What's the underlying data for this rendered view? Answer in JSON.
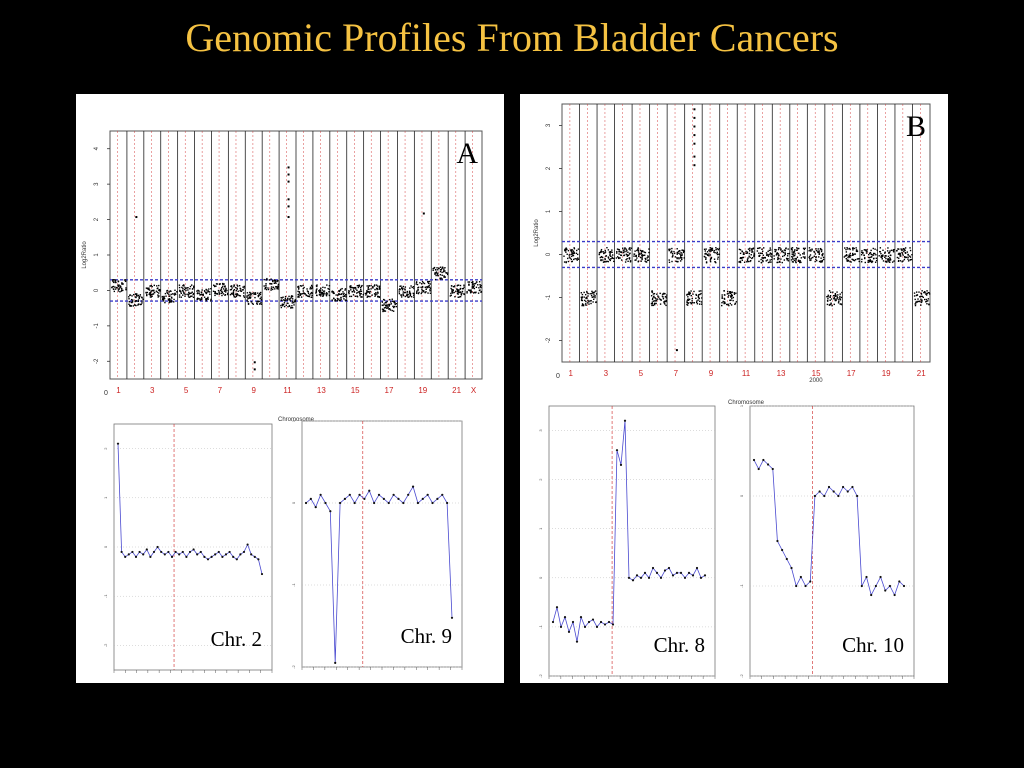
{
  "slide": {
    "title": "Genomic Profiles From Bladder Cancers"
  },
  "colors": {
    "background": "#000000",
    "title": "#f5c242",
    "panel": "#ffffff",
    "trace": "#4a4ad0",
    "chrom_label": "#cc2222",
    "threshold": "#3a3ac8",
    "chr_divider": "#cc2222"
  },
  "chart_data": [
    {
      "panel": "A",
      "type": "scatter",
      "panel_letter": "A",
      "xlabel": "Chromosome",
      "ylabel": "Log2Ratio",
      "x_start_label": "0",
      "chromosome_labels": [
        "1",
        "3",
        "5",
        "7",
        "9",
        "11",
        "13",
        "15",
        "17",
        "19",
        "21",
        "X"
      ],
      "thresholds": [
        0.3,
        -0.3
      ],
      "ylim": [
        -2.5,
        4.5
      ],
      "segments": [
        {
          "chrom": "1",
          "mean": 0.15
        },
        {
          "chrom": "2",
          "mean": -0.25
        },
        {
          "chrom": "3",
          "mean": 0.0
        },
        {
          "chrom": "4",
          "mean": -0.15
        },
        {
          "chrom": "5",
          "mean": 0.0
        },
        {
          "chrom": "6",
          "mean": -0.1
        },
        {
          "chrom": "7",
          "mean": 0.05
        },
        {
          "chrom": "8",
          "mean": 0.0
        },
        {
          "chrom": "9",
          "mean": -0.2
        },
        {
          "chrom": "10",
          "mean": 0.2
        },
        {
          "chrom": "11",
          "mean": -0.3
        },
        {
          "chrom": "12",
          "mean": 0.0
        },
        {
          "chrom": "13",
          "mean": 0.0
        },
        {
          "chrom": "14",
          "mean": -0.1
        },
        {
          "chrom": "15",
          "mean": 0.0
        },
        {
          "chrom": "16",
          "mean": 0.0
        },
        {
          "chrom": "17",
          "mean": -0.4
        },
        {
          "chrom": "18",
          "mean": 0.0
        },
        {
          "chrom": "19",
          "mean": 0.1
        },
        {
          "chrom": "20",
          "mean": 0.5
        },
        {
          "chrom": "21",
          "mean": 0.0
        },
        {
          "chrom": "X",
          "mean": 0.1
        }
      ],
      "outliers": [
        {
          "chrom": "11",
          "values": [
            3.5,
            3.3,
            3.1,
            2.6,
            2.4,
            2.1
          ]
        },
        {
          "chrom": "2",
          "values": [
            2.1
          ]
        },
        {
          "chrom": "9",
          "values": [
            -2.0,
            -2.2
          ]
        },
        {
          "chrom": "19",
          "values": [
            2.2
          ]
        }
      ]
    },
    {
      "panel": "B",
      "type": "scatter",
      "panel_letter": "B",
      "xlabel": "Chromosome",
      "ylabel": "Log2Ratio",
      "x_start_label": "0",
      "x_mid_label": "2000",
      "chromosome_labels": [
        "1",
        "3",
        "5",
        "7",
        "9",
        "11",
        "13",
        "15",
        "17",
        "19",
        "21"
      ],
      "thresholds": [
        0.3,
        -0.3
      ],
      "ylim": [
        -2.5,
        3.5
      ],
      "segments": [
        {
          "chrom": "1",
          "mean": 0.0
        },
        {
          "chrom": "2",
          "mean": -1.0
        },
        {
          "chrom": "3",
          "mean": 0.0
        },
        {
          "chrom": "4",
          "mean": 0.0
        },
        {
          "chrom": "5",
          "mean": 0.0
        },
        {
          "chrom": "6",
          "mean": -1.0
        },
        {
          "chrom": "7",
          "mean": 0.0
        },
        {
          "chrom": "8",
          "mean": -1.0
        },
        {
          "chrom": "9",
          "mean": 0.0
        },
        {
          "chrom": "10",
          "mean": -1.0
        },
        {
          "chrom": "11",
          "mean": 0.0
        },
        {
          "chrom": "12",
          "mean": 0.0
        },
        {
          "chrom": "13",
          "mean": 0.0
        },
        {
          "chrom": "14",
          "mean": 0.0
        },
        {
          "chrom": "15",
          "mean": 0.0
        },
        {
          "chrom": "16",
          "mean": -1.0
        },
        {
          "chrom": "17",
          "mean": 0.0
        },
        {
          "chrom": "18",
          "mean": 0.0
        },
        {
          "chrom": "19",
          "mean": 0.0
        },
        {
          "chrom": "20",
          "mean": 0.0
        },
        {
          "chrom": "21",
          "mean": -1.0
        }
      ],
      "outliers": [
        {
          "chrom": "8",
          "values": [
            3.4,
            3.2,
            3.0,
            2.8,
            2.6,
            2.3,
            2.1
          ]
        },
        {
          "chrom": "7",
          "values": [
            -2.2
          ]
        }
      ]
    },
    {
      "panel": "A-detail-1",
      "type": "line",
      "label": "Chr. 2",
      "ylim": [
        -2.5,
        2.5
      ],
      "values": [
        2.1,
        -0.1,
        -0.2,
        -0.15,
        -0.1,
        -0.2,
        -0.1,
        -0.15,
        -0.05,
        -0.2,
        -0.1,
        0.0,
        -0.1,
        -0.15,
        -0.1,
        -0.2,
        -0.1,
        -0.15,
        -0.1,
        -0.2,
        -0.1,
        -0.05,
        -0.15,
        -0.1,
        -0.2,
        -0.25,
        -0.2,
        -0.15,
        -0.1,
        -0.2,
        -0.15,
        -0.1,
        -0.2,
        -0.25,
        -0.15,
        -0.1,
        0.05,
        -0.15,
        -0.2,
        -0.25,
        -0.55
      ]
    },
    {
      "panel": "A-detail-2",
      "type": "line",
      "label": "Chr. 9",
      "ylim": [
        -2.0,
        1.0
      ],
      "values": [
        0.0,
        0.05,
        -0.05,
        0.1,
        0.0,
        -0.1,
        -1.95,
        0.0,
        0.05,
        0.1,
        0.0,
        0.1,
        0.05,
        0.15,
        0.0,
        0.1,
        0.05,
        0.0,
        0.1,
        0.05,
        0.0,
        0.1,
        0.2,
        0.0,
        0.05,
        0.1,
        0.0,
        0.05,
        0.1,
        0.0,
        -1.4
      ]
    },
    {
      "panel": "B-detail-1",
      "type": "line",
      "label": "Chr. 8",
      "ylim": [
        -2.0,
        3.5
      ],
      "values": [
        -0.9,
        -0.6,
        -1.0,
        -0.8,
        -1.1,
        -0.9,
        -1.3,
        -0.8,
        -1.0,
        -0.9,
        -0.85,
        -1.0,
        -0.9,
        -0.95,
        -0.9,
        -0.95,
        2.6,
        2.3,
        3.2,
        0.0,
        -0.05,
        0.05,
        0.0,
        0.1,
        0.0,
        0.2,
        0.1,
        0.0,
        0.15,
        0.2,
        0.05,
        0.1,
        0.1,
        0.0,
        0.1,
        0.05,
        0.2,
        0.0,
        0.05
      ]
    },
    {
      "panel": "B-detail-2",
      "type": "line",
      "label": "Chr. 10",
      "ylim": [
        -2.0,
        1.0
      ],
      "values": [
        0.4,
        0.3,
        0.4,
        0.35,
        0.3,
        -0.5,
        -0.6,
        -0.7,
        -0.8,
        -1.0,
        -0.9,
        -1.0,
        -0.95,
        0.0,
        0.05,
        0.0,
        0.1,
        0.05,
        0.0,
        0.1,
        0.05,
        0.1,
        0.0,
        -1.0,
        -0.9,
        -1.1,
        -1.0,
        -0.9,
        -1.05,
        -1.0,
        -1.1,
        -0.95,
        -1.0
      ]
    }
  ]
}
